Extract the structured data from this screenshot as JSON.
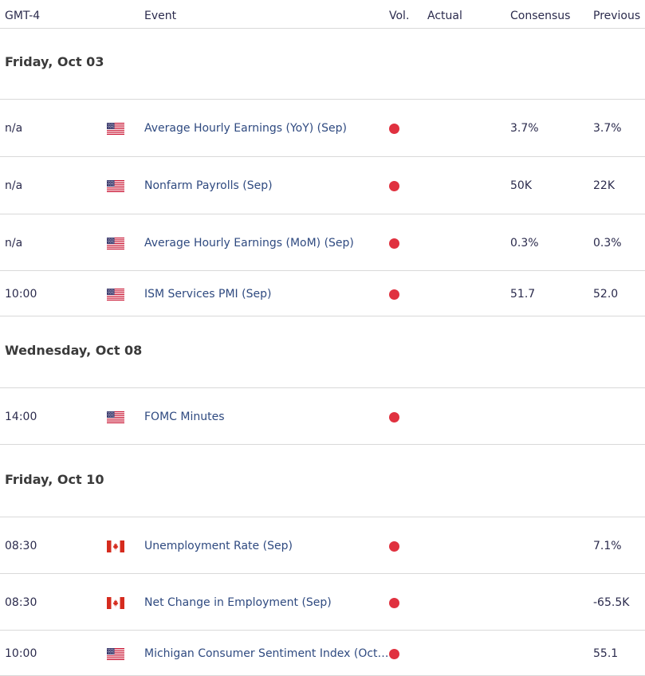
{
  "header": {
    "timezone": "GMT-4",
    "event": "Event",
    "volatility": "Vol.",
    "actual": "Actual",
    "consensus": "Consensus",
    "previous": "Previous"
  },
  "days": [
    {
      "label": "Friday, Oct 03",
      "events": [
        {
          "time": "n/a",
          "country": "us-flag-icon",
          "event": "Average Hourly Earnings (YoY) (Sep)",
          "vol": "high",
          "actual": "",
          "consensus": "3.7%",
          "previous": "3.7%"
        },
        {
          "time": "n/a",
          "country": "us-flag-icon",
          "event": "Nonfarm Payrolls (Sep)",
          "vol": "high",
          "actual": "",
          "consensus": "50K",
          "previous": "22K"
        },
        {
          "time": "n/a",
          "country": "us-flag-icon",
          "event": "Average Hourly Earnings (MoM) (Sep)",
          "vol": "high",
          "actual": "",
          "consensus": "0.3%",
          "previous": "0.3%"
        },
        {
          "time": "10:00",
          "country": "us-flag-icon",
          "event": "ISM Services PMI (Sep)",
          "vol": "high",
          "actual": "",
          "consensus": "51.7",
          "previous": "52.0"
        }
      ]
    },
    {
      "label": "Wednesday, Oct 08",
      "events": [
        {
          "time": "14:00",
          "country": "us-flag-icon",
          "event": "FOMC Minutes",
          "vol": "high",
          "actual": "",
          "consensus": "",
          "previous": ""
        }
      ]
    },
    {
      "label": "Friday, Oct 10",
      "events": [
        {
          "time": "08:30",
          "country": "ca-flag-icon",
          "event": "Unemployment Rate (Sep)",
          "vol": "high",
          "actual": "",
          "consensus": "",
          "previous": "7.1%"
        },
        {
          "time": "08:30",
          "country": "ca-flag-icon",
          "event": "Net Change in Employment (Sep)",
          "vol": "high",
          "actual": "",
          "consensus": "",
          "previous": "-65.5K"
        },
        {
          "time": "10:00",
          "country": "us-flag-icon",
          "event": "Michigan Consumer Sentiment Index (Oct)...",
          "vol": "high",
          "actual": "",
          "consensus": "",
          "previous": "55.1"
        }
      ]
    }
  ],
  "colors": {
    "high_volatility": "#e0313f",
    "event_link": "#2f4a80",
    "divider": "#d9d9d9"
  }
}
